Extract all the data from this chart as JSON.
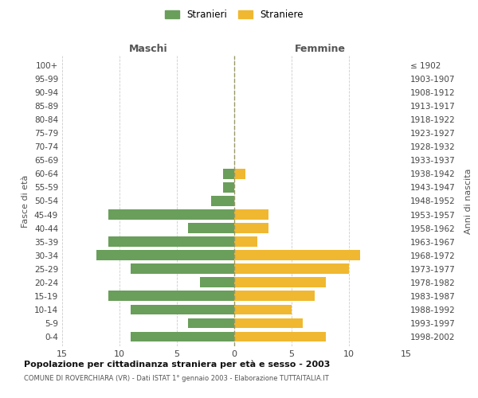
{
  "age_groups": [
    "0-4",
    "5-9",
    "10-14",
    "15-19",
    "20-24",
    "25-29",
    "30-34",
    "35-39",
    "40-44",
    "45-49",
    "50-54",
    "55-59",
    "60-64",
    "65-69",
    "70-74",
    "75-79",
    "80-84",
    "85-89",
    "90-94",
    "95-99",
    "100+"
  ],
  "birth_years": [
    "1998-2002",
    "1993-1997",
    "1988-1992",
    "1983-1987",
    "1978-1982",
    "1973-1977",
    "1968-1972",
    "1963-1967",
    "1958-1962",
    "1953-1957",
    "1948-1952",
    "1943-1947",
    "1938-1942",
    "1933-1937",
    "1928-1932",
    "1923-1927",
    "1918-1922",
    "1913-1917",
    "1908-1912",
    "1903-1907",
    "≤ 1902"
  ],
  "males": [
    9,
    4,
    9,
    11,
    3,
    9,
    12,
    11,
    4,
    11,
    2,
    1,
    1,
    0,
    0,
    0,
    0,
    0,
    0,
    0,
    0
  ],
  "females": [
    8,
    6,
    5,
    7,
    8,
    10,
    11,
    2,
    3,
    3,
    0,
    0,
    1,
    0,
    0,
    0,
    0,
    0,
    0,
    0,
    0
  ],
  "male_color": "#6a9e5b",
  "female_color": "#f0b830",
  "background_color": "#ffffff",
  "grid_color": "#cccccc",
  "title": "Popolazione per cittadinanza straniera per età e sesso - 2003",
  "subtitle": "COMUNE DI ROVERCHIARA (VR) - Dati ISTAT 1° gennaio 2003 - Elaborazione TUTTAITALIA.IT",
  "xlabel_left": "Maschi",
  "xlabel_right": "Femmine",
  "ylabel_left": "Fasce di età",
  "ylabel_right": "Anni di nascita",
  "legend_male": "Stranieri",
  "legend_female": "Straniere",
  "xlim": 15,
  "bar_height": 0.75
}
